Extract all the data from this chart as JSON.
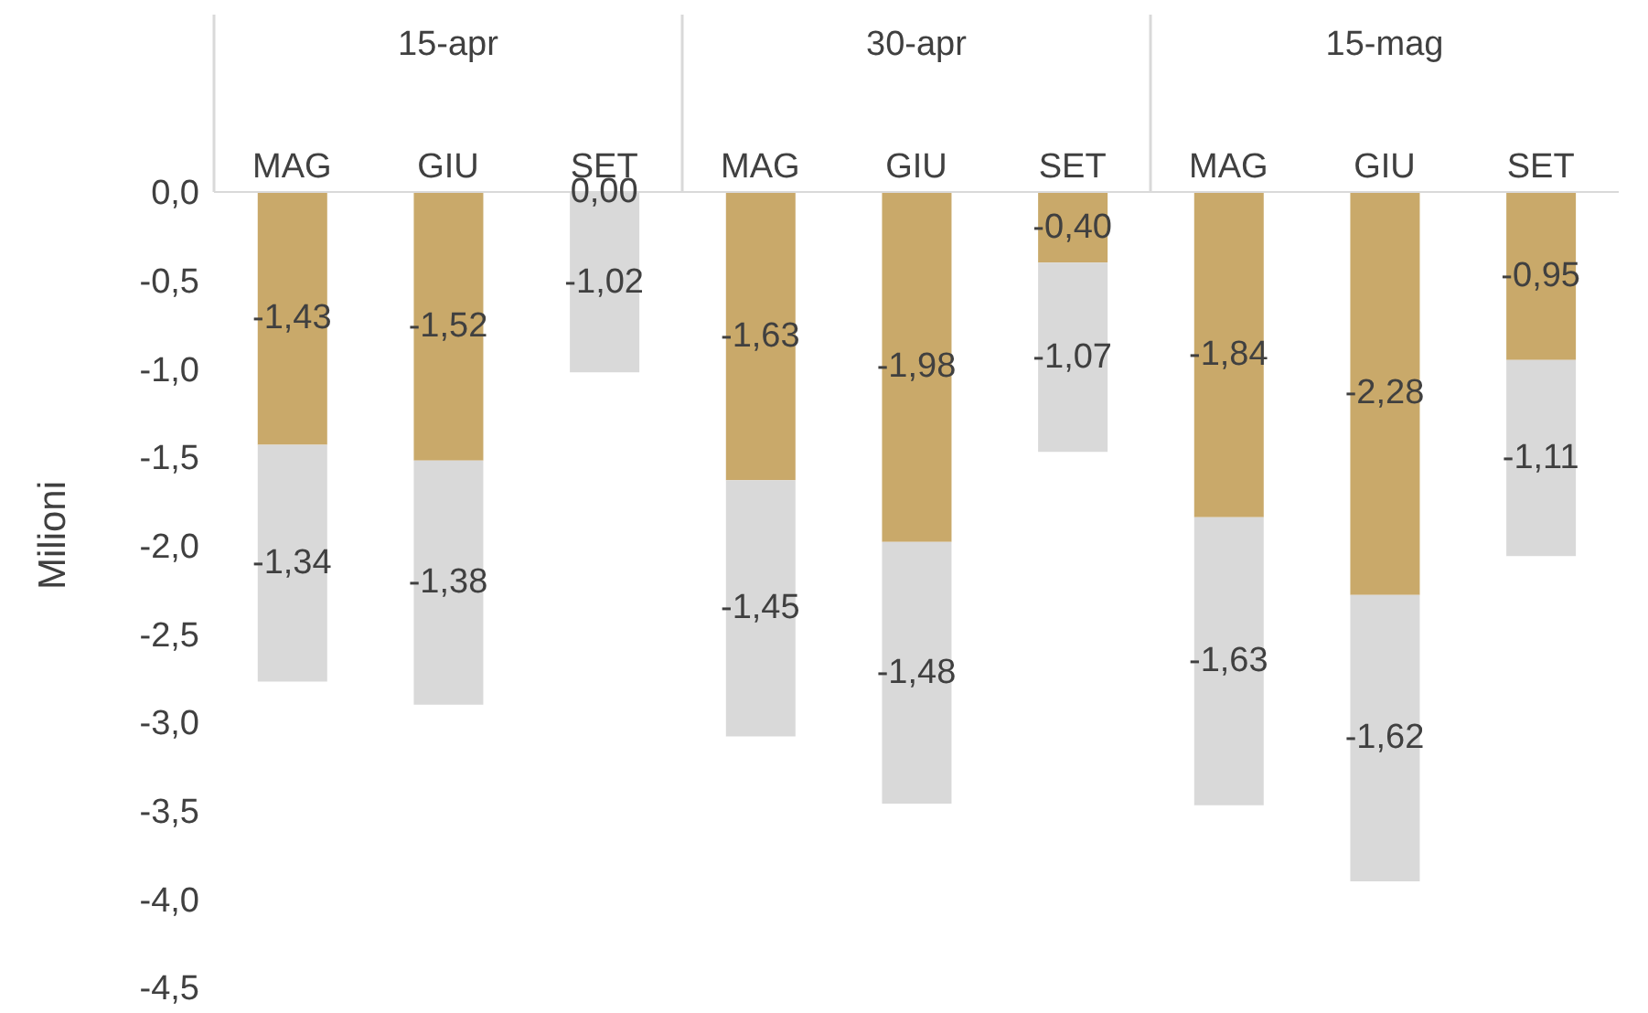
{
  "chart_data": {
    "type": "bar",
    "stacked": true,
    "ylabel": "Milioni",
    "categories": [
      "MAG",
      "GIU",
      "SET",
      "MAG",
      "GIU",
      "SET",
      "MAG",
      "GIU",
      "SET"
    ],
    "annotations": [
      "15-apr",
      "30-apr",
      "15-mag"
    ],
    "series": [
      {
        "color": "#c9a96a",
        "values": [
          -1.43,
          -1.52,
          0.0,
          -1.63,
          -1.98,
          -0.4,
          -1.84,
          -2.28,
          -0.95
        ],
        "value_labels": [
          "-1,43",
          "-1,52",
          "0,00",
          "-1,63",
          "-1,98",
          "-0,40",
          "-1,84",
          "-2,28",
          "-0,95"
        ]
      },
      {
        "color": "#d9d9d9",
        "values": [
          -1.34,
          -1.38,
          -1.02,
          -1.45,
          -1.48,
          -1.07,
          -1.63,
          -1.62,
          -1.11
        ],
        "value_labels": [
          "-1,34",
          "-1,38",
          "-1,02",
          "-1,45",
          "-1,48",
          "-1,07",
          "-1,63",
          "-1,62",
          "-1,11"
        ]
      }
    ],
    "ylim": [
      -4.5,
      0
    ],
    "yticks": [
      {
        "value": 0,
        "label": "0,0"
      },
      {
        "value": -0.5,
        "label": "-0,5"
      },
      {
        "value": -1,
        "label": "-1,0"
      },
      {
        "value": -1.5,
        "label": "-1,5"
      },
      {
        "value": -2,
        "label": "-2,0"
      },
      {
        "value": -2.5,
        "label": "-2,5"
      },
      {
        "value": -3,
        "label": "-3,0"
      },
      {
        "value": -3.5,
        "label": "-3,5"
      },
      {
        "value": -4,
        "label": "-4,0"
      },
      {
        "value": -4.5,
        "label": "-4,5"
      }
    ],
    "grid": false,
    "legend": false
  }
}
